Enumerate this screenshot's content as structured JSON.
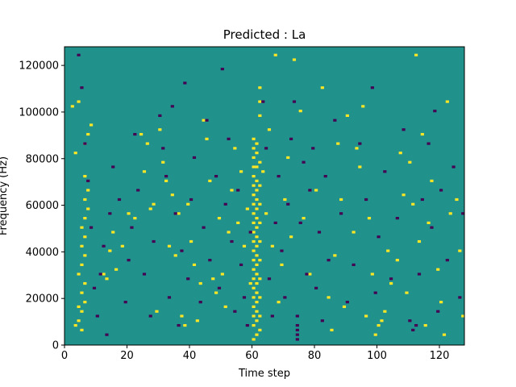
{
  "chart_data": {
    "type": "heatmap",
    "title": "Predicted : La",
    "xlabel": "Time step",
    "ylabel": "Frequency (Hz)",
    "xlim": [
      0,
      128
    ],
    "ylim": [
      0,
      128000
    ],
    "xticks": [
      0,
      20,
      40,
      60,
      80,
      100,
      120
    ],
    "yticks": [
      0,
      20000,
      40000,
      60000,
      80000,
      100000,
      120000
    ],
    "xtick_labels": [
      "0",
      "20",
      "40",
      "60",
      "80",
      "100",
      "120"
    ],
    "ytick_labels": [
      "0",
      "20000",
      "40000",
      "60000",
      "80000",
      "100000",
      "120000"
    ],
    "colormap": "viridis (3 levels)",
    "colors": {
      "background": "#21918c",
      "high": "#fde725",
      "low": "#440154"
    },
    "grid": false,
    "cells": {
      "yellow": [
        [
          3,
          8
        ],
        [
          4,
          10
        ],
        [
          5,
          6
        ],
        [
          4,
          16
        ],
        [
          5,
          14
        ],
        [
          6,
          18
        ],
        [
          5,
          22
        ],
        [
          6,
          26
        ],
        [
          4,
          30
        ],
        [
          5,
          34
        ],
        [
          6,
          38
        ],
        [
          5,
          42
        ],
        [
          6,
          46
        ],
        [
          5,
          50
        ],
        [
          6,
          54
        ],
        [
          7,
          58
        ],
        [
          6,
          62
        ],
        [
          7,
          66
        ],
        [
          6,
          72
        ],
        [
          3,
          82
        ],
        [
          6,
          86
        ],
        [
          7,
          90
        ],
        [
          8,
          94
        ],
        [
          2,
          102
        ],
        [
          4,
          104
        ],
        [
          12,
          30
        ],
        [
          13,
          28
        ],
        [
          14,
          40
        ],
        [
          15,
          48
        ],
        [
          16,
          32
        ],
        [
          18,
          42
        ],
        [
          20,
          56
        ],
        [
          22,
          54
        ],
        [
          24,
          90
        ],
        [
          25,
          74
        ],
        [
          26,
          86
        ],
        [
          27,
          58
        ],
        [
          28,
          60
        ],
        [
          29,
          14
        ],
        [
          30,
          92
        ],
        [
          31,
          78
        ],
        [
          32,
          70
        ],
        [
          33,
          42
        ],
        [
          34,
          64
        ],
        [
          35,
          38
        ],
        [
          36,
          56
        ],
        [
          37,
          12
        ],
        [
          38,
          8
        ],
        [
          39,
          60
        ],
        [
          40,
          44
        ],
        [
          41,
          34
        ],
        [
          42,
          10
        ],
        [
          43,
          26
        ],
        [
          44,
          96
        ],
        [
          45,
          88
        ],
        [
          46,
          70
        ],
        [
          47,
          28
        ],
        [
          48,
          22
        ],
        [
          49,
          54
        ],
        [
          50,
          30
        ],
        [
          51,
          16
        ],
        [
          52,
          48
        ],
        [
          53,
          66
        ],
        [
          54,
          84
        ],
        [
          55,
          52
        ],
        [
          56,
          74
        ],
        [
          57,
          42
        ],
        [
          58,
          58
        ],
        [
          59,
          26
        ],
        [
          60,
          2
        ],
        [
          60,
          8
        ],
        [
          60,
          12
        ],
        [
          60,
          16
        ],
        [
          60,
          20
        ],
        [
          60,
          24
        ],
        [
          60,
          28
        ],
        [
          60,
          32
        ],
        [
          60,
          36
        ],
        [
          60,
          40
        ],
        [
          60,
          44
        ],
        [
          60,
          48
        ],
        [
          60,
          52
        ],
        [
          60,
          56
        ],
        [
          60,
          60
        ],
        [
          60,
          64
        ],
        [
          60,
          68
        ],
        [
          60,
          72
        ],
        [
          60,
          76
        ],
        [
          60,
          80
        ],
        [
          60,
          84
        ],
        [
          60,
          88
        ],
        [
          61,
          4
        ],
        [
          61,
          10
        ],
        [
          61,
          14
        ],
        [
          61,
          18
        ],
        [
          61,
          22
        ],
        [
          61,
          26
        ],
        [
          61,
          30
        ],
        [
          61,
          34
        ],
        [
          61,
          38
        ],
        [
          61,
          42
        ],
        [
          61,
          46
        ],
        [
          61,
          50
        ],
        [
          61,
          54
        ],
        [
          61,
          58
        ],
        [
          61,
          62
        ],
        [
          61,
          66
        ],
        [
          61,
          70
        ],
        [
          61,
          76
        ],
        [
          61,
          82
        ],
        [
          61,
          86
        ],
        [
          62,
          6
        ],
        [
          62,
          12
        ],
        [
          62,
          20
        ],
        [
          62,
          28
        ],
        [
          62,
          36
        ],
        [
          62,
          44
        ],
        [
          62,
          52
        ],
        [
          62,
          60
        ],
        [
          62,
          68
        ],
        [
          62,
          78
        ],
        [
          62,
          98
        ],
        [
          62,
          104
        ],
        [
          62,
          110
        ],
        [
          63,
          74
        ],
        [
          64,
          56
        ],
        [
          65,
          92
        ],
        [
          66,
          42
        ],
        [
          67,
          124
        ],
        [
          68,
          18
        ],
        [
          69,
          34
        ],
        [
          70,
          62
        ],
        [
          71,
          80
        ],
        [
          72,
          46
        ],
        [
          73,
          122
        ],
        [
          75,
          100
        ],
        [
          76,
          54
        ],
        [
          78,
          30
        ],
        [
          80,
          66
        ],
        [
          82,
          110
        ],
        [
          84,
          20
        ],
        [
          85,
          6
        ],
        [
          86,
          38
        ],
        [
          87,
          86
        ],
        [
          88,
          62
        ],
        [
          89,
          16
        ],
        [
          90,
          98
        ],
        [
          92,
          48
        ],
        [
          93,
          84
        ],
        [
          94,
          76
        ],
        [
          95,
          102
        ],
        [
          96,
          12
        ],
        [
          97,
          54
        ],
        [
          98,
          30
        ],
        [
          99,
          4
        ],
        [
          100,
          8
        ],
        [
          101,
          10
        ],
        [
          102,
          14
        ],
        [
          103,
          40
        ],
        [
          104,
          26
        ],
        [
          106,
          36
        ],
        [
          107,
          82
        ],
        [
          108,
          64
        ],
        [
          109,
          22
        ],
        [
          110,
          78
        ],
        [
          111,
          60
        ],
        [
          112,
          124
        ],
        [
          113,
          44
        ],
        [
          114,
          90
        ],
        [
          115,
          8
        ],
        [
          116,
          52
        ],
        [
          117,
          70
        ],
        [
          119,
          32
        ],
        [
          120,
          18
        ],
        [
          121,
          4
        ],
        [
          122,
          104
        ],
        [
          123,
          56
        ],
        [
          125,
          62
        ],
        [
          126,
          40
        ],
        [
          127,
          12
        ]
      ],
      "purple": [
        [
          4,
          124
        ],
        [
          5,
          110
        ],
        [
          6,
          86
        ],
        [
          7,
          70
        ],
        [
          8,
          50
        ],
        [
          9,
          24
        ],
        [
          10,
          12
        ],
        [
          11,
          30
        ],
        [
          12,
          42
        ],
        [
          13,
          4
        ],
        [
          14,
          56
        ],
        [
          15,
          76
        ],
        [
          17,
          62
        ],
        [
          19,
          18
        ],
        [
          20,
          36
        ],
        [
          21,
          50
        ],
        [
          22,
          90
        ],
        [
          23,
          66
        ],
        [
          25,
          30
        ],
        [
          27,
          12
        ],
        [
          28,
          44
        ],
        [
          30,
          98
        ],
        [
          31,
          84
        ],
        [
          32,
          72
        ],
        [
          33,
          20
        ],
        [
          34,
          102
        ],
        [
          35,
          56
        ],
        [
          36,
          8
        ],
        [
          37,
          40
        ],
        [
          38,
          112
        ],
        [
          39,
          28
        ],
        [
          40,
          62
        ],
        [
          41,
          80
        ],
        [
          43,
          18
        ],
        [
          44,
          50
        ],
        [
          45,
          96
        ],
        [
          46,
          36
        ],
        [
          48,
          72
        ],
        [
          49,
          24
        ],
        [
          50,
          118
        ],
        [
          51,
          60
        ],
        [
          52,
          88
        ],
        [
          53,
          44
        ],
        [
          54,
          14
        ],
        [
          55,
          66
        ],
        [
          56,
          34
        ],
        [
          57,
          20
        ],
        [
          58,
          8
        ],
        [
          59,
          48
        ],
        [
          63,
          104
        ],
        [
          64,
          84
        ],
        [
          65,
          28
        ],
        [
          66,
          12
        ],
        [
          67,
          52
        ],
        [
          68,
          72
        ],
        [
          69,
          40
        ],
        [
          70,
          20
        ],
        [
          71,
          60
        ],
        [
          72,
          88
        ],
        [
          73,
          104
        ],
        [
          74,
          2
        ],
        [
          74,
          4
        ],
        [
          74,
          6
        ],
        [
          74,
          8
        ],
        [
          74,
          12
        ],
        [
          75,
          52
        ],
        [
          76,
          78
        ],
        [
          77,
          30
        ],
        [
          78,
          66
        ],
        [
          79,
          84
        ],
        [
          80,
          24
        ],
        [
          81,
          48
        ],
        [
          82,
          10
        ],
        [
          83,
          72
        ],
        [
          84,
          36
        ],
        [
          86,
          96
        ],
        [
          88,
          56
        ],
        [
          90,
          18
        ],
        [
          92,
          34
        ],
        [
          94,
          86
        ],
        [
          96,
          62
        ],
        [
          98,
          110
        ],
        [
          99,
          22
        ],
        [
          100,
          46
        ],
        [
          102,
          74
        ],
        [
          104,
          28
        ],
        [
          106,
          54
        ],
        [
          108,
          92
        ],
        [
          110,
          10
        ],
        [
          111,
          6
        ],
        [
          112,
          8
        ],
        [
          113,
          30
        ],
        [
          114,
          62
        ],
        [
          116,
          86
        ],
        [
          117,
          50
        ],
        [
          118,
          100
        ],
        [
          119,
          14
        ],
        [
          120,
          66
        ],
        [
          122,
          36
        ],
        [
          124,
          76
        ],
        [
          126,
          20
        ],
        [
          127,
          56
        ]
      ]
    }
  }
}
